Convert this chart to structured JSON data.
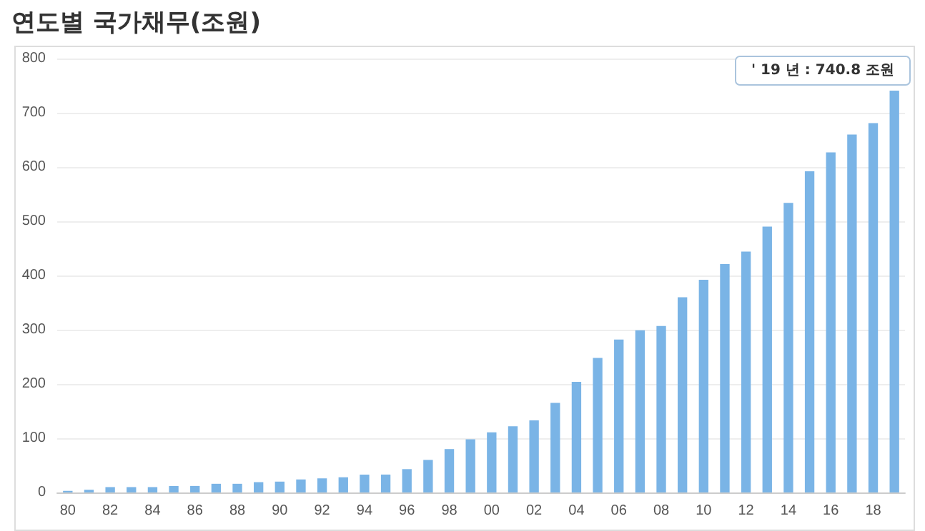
{
  "chart_data": {
    "type": "bar",
    "title": "연도별 국가채무(조원)",
    "categories": [
      "80",
      null,
      "82",
      null,
      "84",
      null,
      "86",
      null,
      "88",
      null,
      "90",
      null,
      "92",
      null,
      "94",
      null,
      "96",
      null,
      "98",
      null,
      "00",
      null,
      "02",
      null,
      "04",
      null,
      "06",
      null,
      "08",
      null,
      "10",
      null,
      "12",
      null,
      "14",
      null,
      "16",
      null,
      "18",
      null
    ],
    "values": [
      3,
      5,
      10,
      10,
      10,
      12,
      12,
      16,
      16,
      19,
      20,
      24,
      26,
      28,
      33,
      33,
      43,
      60,
      80,
      98,
      111,
      122,
      133,
      165,
      204,
      248,
      282,
      299,
      307,
      360,
      392,
      421,
      444,
      490,
      534,
      592,
      627,
      660,
      681,
      740.8
    ],
    "color": "#7ab4e6",
    "ylim": [
      0,
      800
    ],
    "yticks": [
      0,
      100,
      200,
      300,
      400,
      500,
      600,
      700,
      800
    ],
    "grid": "y",
    "annotations": [
      "' 19 년 : 740.8 조원"
    ]
  }
}
